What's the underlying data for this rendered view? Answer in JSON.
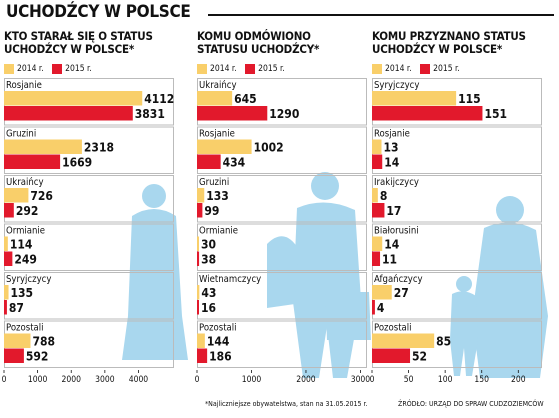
{
  "title": "UCHODŹCY W POLSCE",
  "colors": {
    "y2014": "#f9cf6a",
    "y2015": "#e2192c",
    "silhouette": "#a9d7ee",
    "divider": "#bbbbbb"
  },
  "legend": {
    "y2014": "2014 r.",
    "y2015": "2015 r."
  },
  "chart_data": [
    {
      "type": "bar",
      "title": "KTO STARAŁ SIĘ O STATUS\nUCHODŹCY W POLSCE*",
      "categories": [
        "Rosjanie",
        "Gruzini",
        "Ukraińcy",
        "Ormianie",
        "Syryjczycy",
        "Pozostali"
      ],
      "series": [
        {
          "name": "2014 r.",
          "values": [
            4112,
            2318,
            726,
            114,
            135,
            788
          ]
        },
        {
          "name": "2015 r.",
          "values": [
            3831,
            1669,
            292,
            249,
            87,
            592
          ]
        }
      ],
      "xlim": [
        0,
        4700
      ],
      "ticks": [
        0,
        1000,
        2000,
        3000,
        4000
      ]
    },
    {
      "type": "bar",
      "title": "KOMU ODMÓWIONO\nSTATUSU UCHODŹCY*",
      "categories": [
        "Ukraińcy",
        "Rosjanie",
        "Gruzini",
        "Ormianie",
        "Wietnamczycy",
        "Pozostali"
      ],
      "series": [
        {
          "name": "2014 r.",
          "values": [
            645,
            1002,
            133,
            30,
            43,
            144
          ]
        },
        {
          "name": "2015 r.",
          "values": [
            1290,
            434,
            99,
            38,
            16,
            186
          ]
        }
      ],
      "xlim": [
        0,
        2900
      ],
      "ticks": [
        0,
        1000,
        2000,
        3000
      ]
    },
    {
      "type": "bar",
      "title": "KOMU PRZYZNANO STATUS\nUCHODŹCY W POLSCE*",
      "categories": [
        "Syryjczycy",
        "Rosjanie",
        "Irakijczycy",
        "Białorusini",
        "Afgańczycy",
        "Pozostali"
      ],
      "series": [
        {
          "name": "2014 r.",
          "values": [
            115,
            13,
            8,
            14,
            27,
            85
          ]
        },
        {
          "name": "2015 r.",
          "values": [
            151,
            14,
            17,
            11,
            4,
            52
          ]
        }
      ],
      "xlim": [
        0,
        216
      ],
      "ticks": [
        0,
        50,
        100,
        150,
        200
      ]
    }
  ],
  "footnotes": {
    "middle": "*Najliczniejsze obywatelstwa, stan na 31.05.2015 r.",
    "right": "ŹRÓDŁO: URZĄD DO SPRAW CUDZOZIEMCÓW"
  }
}
